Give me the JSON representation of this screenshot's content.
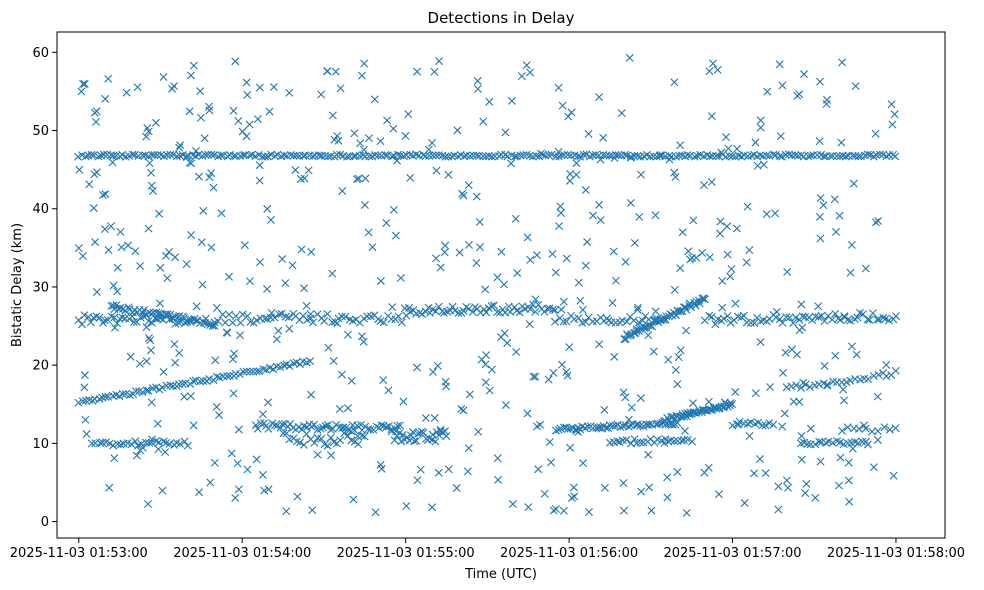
{
  "chart_data": {
    "type": "scatter",
    "title": "Detections in Delay",
    "xlabel": "Time (UTC)",
    "ylabel": "Bistatic Delay (km)",
    "x_ticks": [
      "2025-11-03 01:53:00",
      "2025-11-03 01:54:00",
      "2025-11-03 01:55:00",
      "2025-11-03 01:56:00",
      "2025-11-03 01:57:00",
      "2025-11-03 01:58:00"
    ],
    "y_ticks": [
      "0",
      "10",
      "20",
      "30",
      "40",
      "50",
      "60"
    ],
    "xlim": [
      "2025-11-03 01:52:52",
      "2025-11-03 01:58:18"
    ],
    "ylim": [
      -2.1,
      62.6
    ],
    "grid": false,
    "marker": "x",
    "color": "#1f77b4",
    "series": [
      {
        "tracks": [
          {
            "t0": "2025-11-03 01:53:00",
            "t1": "2025-11-03 01:58:00",
            "y0": 46.8,
            "y1": 46.8,
            "n": 260,
            "jitter": 0.15
          },
          {
            "t0": "2025-11-03 01:53:00",
            "t1": "2025-11-03 01:54:25",
            "y0": 15.2,
            "y1": 20.5,
            "n": 70,
            "jitter": 0.2
          },
          {
            "t0": "2025-11-03 01:53:00",
            "t1": "2025-11-03 01:53:42",
            "y0": 25.8,
            "y1": 25.8,
            "n": 40,
            "jitter": 0.6
          },
          {
            "t0": "2025-11-03 01:53:12",
            "t1": "2025-11-03 01:53:50",
            "y0": 27.5,
            "y1": 25.2,
            "n": 45,
            "jitter": 0.3
          },
          {
            "t0": "2025-11-03 01:53:50",
            "t1": "2025-11-03 01:55:00",
            "y0": 26.0,
            "y1": 26.0,
            "n": 55,
            "jitter": 0.6
          },
          {
            "t0": "2025-11-03 01:55:00",
            "t1": "2025-11-03 01:55:55",
            "y0": 27.0,
            "y1": 27.3,
            "n": 55,
            "jitter": 0.5
          },
          {
            "t0": "2025-11-03 01:55:55",
            "t1": "2025-11-03 01:56:35",
            "y0": 25.8,
            "y1": 26.0,
            "n": 30,
            "jitter": 0.5
          },
          {
            "t0": "2025-11-03 01:56:20",
            "t1": "2025-11-03 01:56:50",
            "y0": 23.5,
            "y1": 28.5,
            "n": 50,
            "jitter": 0.3
          },
          {
            "t0": "2025-11-03 01:56:50",
            "t1": "2025-11-03 01:58:00",
            "y0": 25.8,
            "y1": 26.2,
            "n": 60,
            "jitter": 0.6
          },
          {
            "t0": "2025-11-03 01:53:05",
            "t1": "2025-11-03 01:53:40",
            "y0": 10.0,
            "y1": 10.0,
            "n": 28,
            "jitter": 0.3
          },
          {
            "t0": "2025-11-03 01:54:05",
            "t1": "2025-11-03 01:54:58",
            "y0": 12.2,
            "y1": 11.9,
            "n": 55,
            "jitter": 0.4
          },
          {
            "t0": "2025-11-03 01:54:15",
            "t1": "2025-11-03 01:54:45",
            "y0": 10.5,
            "y1": 10.5,
            "n": 25,
            "jitter": 0.8
          },
          {
            "t0": "2025-11-03 01:54:55",
            "t1": "2025-11-03 01:55:15",
            "y0": 11.0,
            "y1": 10.8,
            "n": 30,
            "jitter": 0.8
          },
          {
            "t0": "2025-11-03 01:55:55",
            "t1": "2025-11-03 01:56:40",
            "y0": 11.8,
            "y1": 12.6,
            "n": 50,
            "jitter": 0.2
          },
          {
            "t0": "2025-11-03 01:56:15",
            "t1": "2025-11-03 01:56:45",
            "y0": 10.2,
            "y1": 10.4,
            "n": 25,
            "jitter": 0.3
          },
          {
            "t0": "2025-11-03 01:56:35",
            "t1": "2025-11-03 01:57:00",
            "y0": 13.0,
            "y1": 15.0,
            "n": 45,
            "jitter": 0.2
          },
          {
            "t0": "2025-11-03 01:57:00",
            "t1": "2025-11-03 01:57:15",
            "y0": 12.5,
            "y1": 12.5,
            "n": 12,
            "jitter": 0.3
          },
          {
            "t0": "2025-11-03 01:57:25",
            "t1": "2025-11-03 01:57:50",
            "y0": 10.0,
            "y1": 10.0,
            "n": 20,
            "jitter": 0.3
          },
          {
            "t0": "2025-11-03 01:57:20",
            "t1": "2025-11-03 01:58:00",
            "y0": 17.0,
            "y1": 19.0,
            "n": 25,
            "jitter": 0.3
          },
          {
            "t0": "2025-11-03 01:57:40",
            "t1": "2025-11-03 01:58:00",
            "y0": 11.8,
            "y1": 11.8,
            "n": 10,
            "jitter": 0.3
          }
        ],
        "clutter": {
          "t0": "2025-11-03 01:53:00",
          "t1": "2025-11-03 01:58:00",
          "y0": 1.0,
          "y1": 59.5,
          "n": 560
        }
      }
    ]
  }
}
